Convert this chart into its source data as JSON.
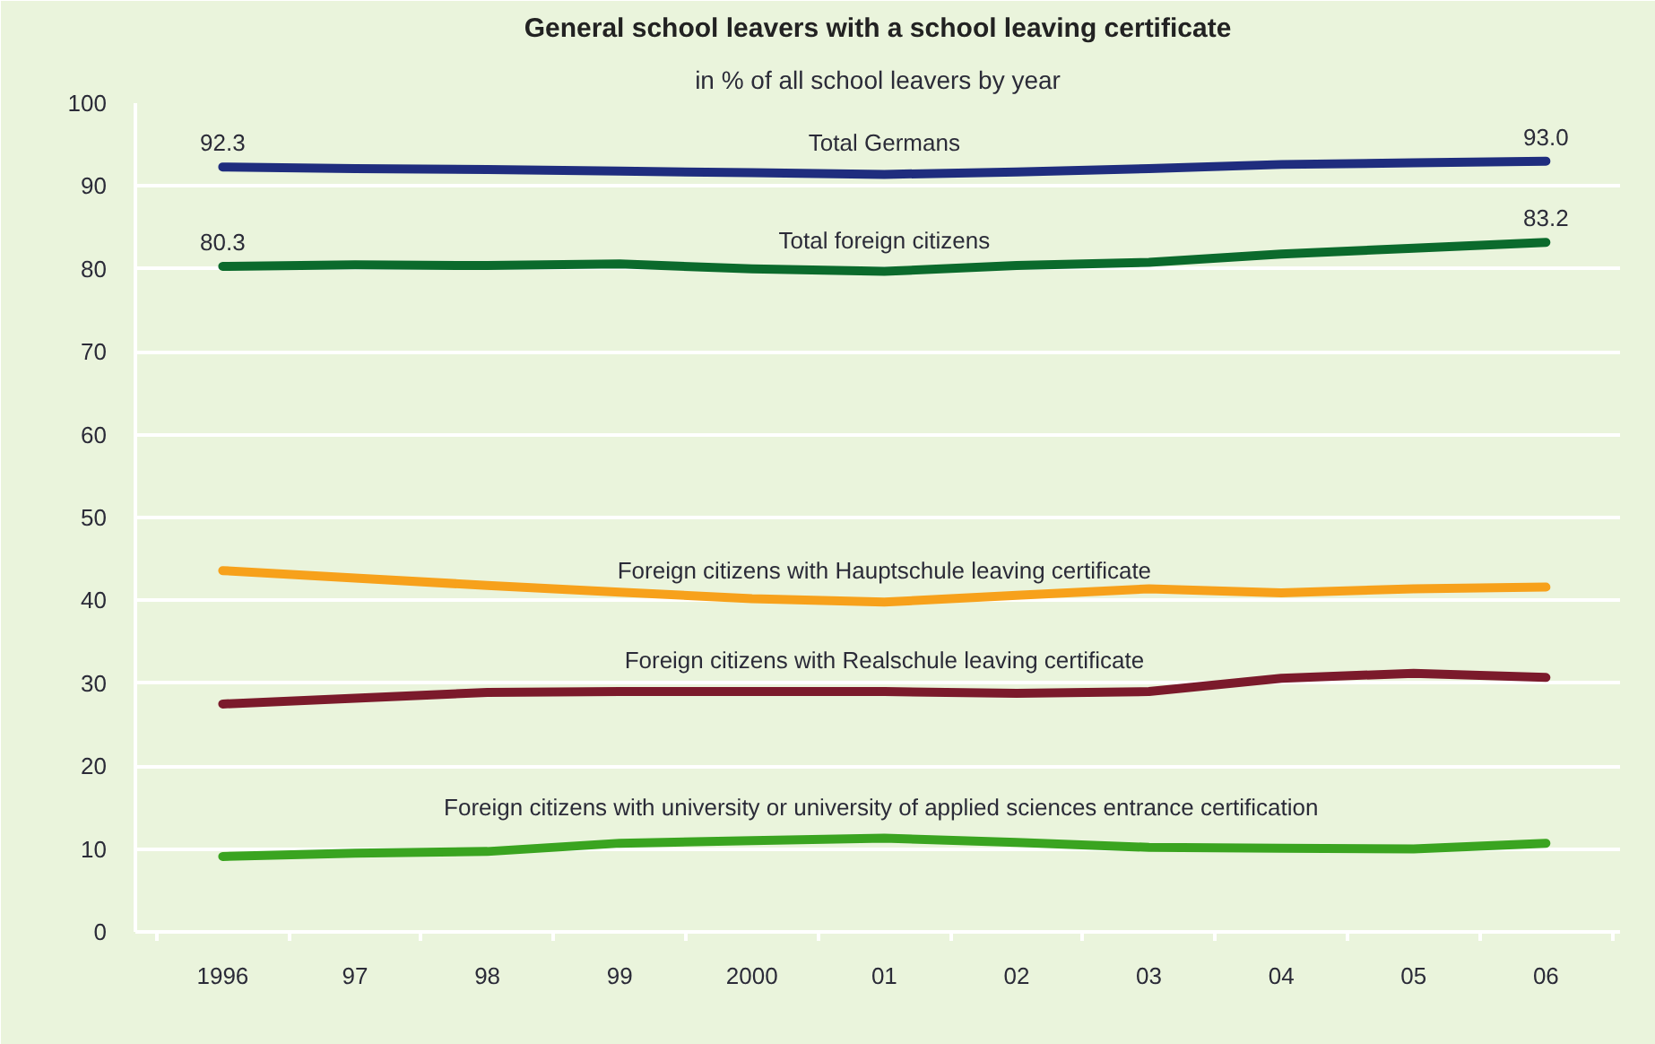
{
  "chart_data": {
    "type": "line",
    "title": "General school leavers with a school leaving certificate",
    "subtitle": "in % of all school leavers by year",
    "categories": [
      "1996",
      "97",
      "98",
      "99",
      "2000",
      "01",
      "02",
      "03",
      "04",
      "05",
      "06"
    ],
    "series": [
      {
        "name": "Total Germans",
        "color": "#1f2d7e",
        "values": [
          92.3,
          92.1,
          92.0,
          91.8,
          91.6,
          91.4,
          91.7,
          92.1,
          92.6,
          92.8,
          93.0
        ],
        "value_labels": [
          "92.3",
          null,
          null,
          null,
          null,
          null,
          null,
          null,
          null,
          null,
          "93.0"
        ]
      },
      {
        "name": "Total foreign citizens",
        "color": "#0b6a2c",
        "values": [
          80.3,
          80.5,
          80.4,
          80.6,
          80.0,
          79.7,
          80.4,
          80.8,
          81.8,
          82.5,
          83.2
        ],
        "value_labels": [
          "80.3",
          null,
          null,
          null,
          null,
          null,
          null,
          null,
          null,
          null,
          "83.2"
        ]
      },
      {
        "name": "Foreign citizens with Hauptschule leaving certificate",
        "color": "#f7a11b",
        "values": [
          43.6,
          42.7,
          41.8,
          41.0,
          40.2,
          39.8,
          40.6,
          41.4,
          40.9,
          41.4,
          41.6
        ]
      },
      {
        "name": "Foreign citizens with Realschule leaving certificate",
        "color": "#7b1a2b",
        "values": [
          27.5,
          28.2,
          28.9,
          29.0,
          29.0,
          29.0,
          28.8,
          29.0,
          30.6,
          31.2,
          30.7
        ]
      },
      {
        "name": "Foreign citizens with  university or university of applied sciences entrance certification",
        "color": "#3aa420",
        "values": [
          9.1,
          9.5,
          9.7,
          10.7,
          11.0,
          11.3,
          10.8,
          10.2,
          10.1,
          10.0,
          10.7
        ]
      }
    ],
    "ylim": [
      0,
      100
    ],
    "yticks": [
      0,
      10,
      20,
      30,
      40,
      50,
      60,
      70,
      80,
      90,
      100
    ],
    "grid": "y"
  }
}
